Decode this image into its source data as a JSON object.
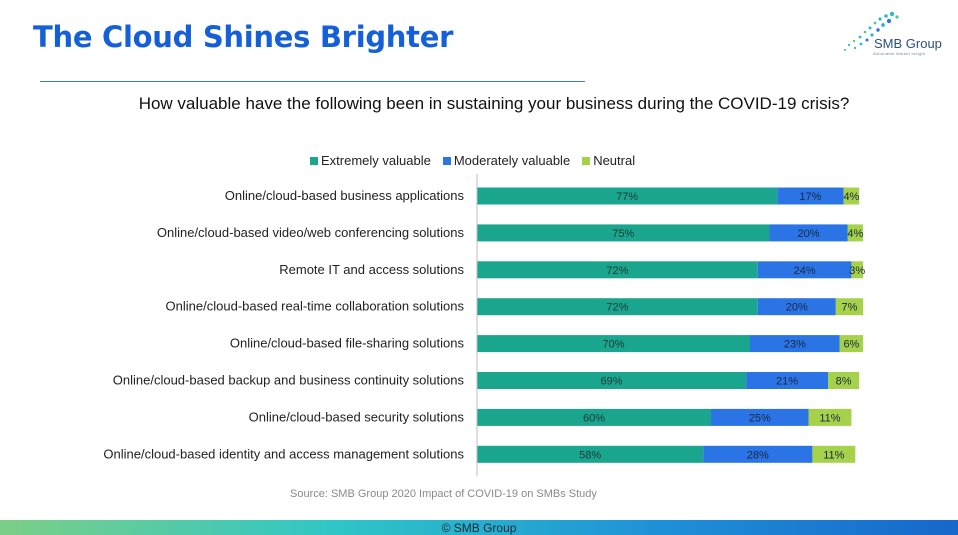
{
  "header": {
    "title": "The Cloud Shines Brighter",
    "logo_text": "SMB Group",
    "logo_tagline": "Actionable Market Insight",
    "logo_icon": "dot-swirl-icon"
  },
  "question": "How valuable have the following been in sustaining  your business during the COVID-19 crisis?",
  "source": "Source: SMB Group 2020 Impact of COVID-19 on SMBs Study",
  "footer": "© SMB Group",
  "chart_data": {
    "type": "bar",
    "orientation": "horizontal",
    "stacked": true,
    "legend_position": "top",
    "grid": false,
    "title": "",
    "xlabel": "",
    "ylabel": "",
    "xlim": [
      0,
      100
    ],
    "categories": [
      "Online/cloud-based business applications",
      "Online/cloud-based video/web conferencing solutions",
      "Remote IT and access solutions",
      "Online/cloud-based real-time collaboration solutions",
      "Online/cloud-based file-sharing solutions",
      "Online/cloud-based backup and business continuity solutions",
      "Online/cloud-based security solutions",
      "Online/cloud-based identity and access management solutions"
    ],
    "series": [
      {
        "name": "Extremely valuable",
        "color": "#1aa58e",
        "values": [
          77,
          75,
          72,
          72,
          70,
          69,
          60,
          58
        ]
      },
      {
        "name": "Moderately valuable",
        "color": "#2a74e6",
        "values": [
          17,
          20,
          24,
          20,
          23,
          21,
          25,
          28
        ]
      },
      {
        "name": "Neutral",
        "color": "#a5d24a",
        "values": [
          4,
          4,
          3,
          7,
          6,
          8,
          11,
          11
        ]
      }
    ],
    "data_label_suffix": "%"
  }
}
